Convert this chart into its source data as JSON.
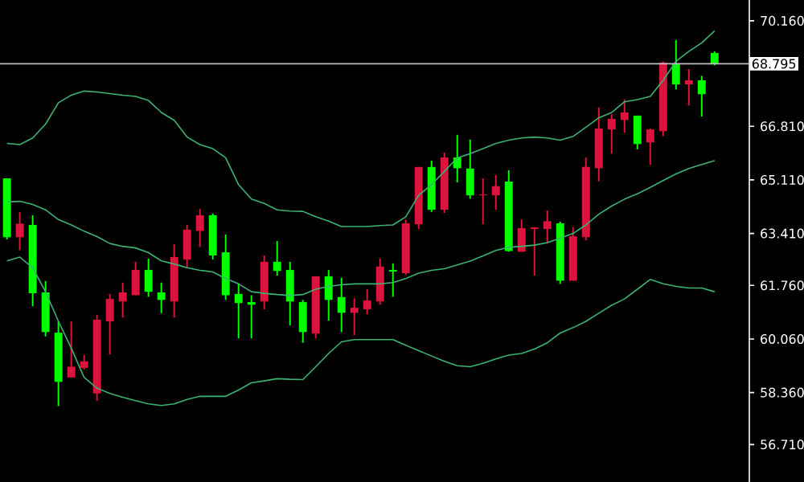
{
  "chart_data": {
    "type": "candlestick",
    "categories": [
      null,
      null,
      null,
      null,
      null,
      null,
      null,
      null,
      null,
      null,
      null,
      null,
      null,
      null,
      null,
      null,
      null,
      null,
      null,
      null,
      null,
      null,
      null,
      null,
      null,
      null,
      null,
      null,
      null,
      null,
      null,
      null,
      null,
      null,
      null,
      null,
      null,
      null,
      null,
      null,
      null,
      null,
      null,
      null,
      null,
      null,
      null,
      null,
      null,
      null,
      null,
      null,
      null,
      null,
      null,
      null
    ],
    "ohlc": [
      [
        65.16,
        65.16,
        63.22,
        63.29
      ],
      [
        63.29,
        64.09,
        62.88,
        63.72
      ],
      [
        63.68,
        63.99,
        61.1,
        61.51
      ],
      [
        61.54,
        61.9,
        60.14,
        60.28
      ],
      [
        60.26,
        60.62,
        57.93,
        58.7
      ],
      [
        58.84,
        60.62,
        58.84,
        59.18
      ],
      [
        59.14,
        59.55,
        59.09,
        59.35
      ],
      [
        58.33,
        60.82,
        58.1,
        60.67
      ],
      [
        60.62,
        61.49,
        59.57,
        61.33
      ],
      [
        61.25,
        61.85,
        60.74,
        61.54
      ],
      [
        61.45,
        62.51,
        61.45,
        62.25
      ],
      [
        62.25,
        62.61,
        61.4,
        61.56
      ],
      [
        61.54,
        61.85,
        60.88,
        61.3
      ],
      [
        61.25,
        63.07,
        60.74,
        62.66
      ],
      [
        62.58,
        63.68,
        62.32,
        63.53
      ],
      [
        63.49,
        64.19,
        62.98,
        63.99
      ],
      [
        63.99,
        64.04,
        62.58,
        62.71
      ],
      [
        62.81,
        63.38,
        61.3,
        61.45
      ],
      [
        61.49,
        61.81,
        60.08,
        61.2
      ],
      [
        61.23,
        61.45,
        60.08,
        61.15
      ],
      [
        61.25,
        62.71,
        61.0,
        62.51
      ],
      [
        62.51,
        63.17,
        62.07,
        62.22
      ],
      [
        62.25,
        62.51,
        60.49,
        61.25
      ],
      [
        61.23,
        61.3,
        59.94,
        60.28
      ],
      [
        60.23,
        62.05,
        60.08,
        62.05
      ],
      [
        62.05,
        62.25,
        60.64,
        61.3
      ],
      [
        61.39,
        62.0,
        60.28,
        60.89
      ],
      [
        60.89,
        61.35,
        60.18,
        61.05
      ],
      [
        61.0,
        61.64,
        60.84,
        61.28
      ],
      [
        61.25,
        62.61,
        61.15,
        62.36
      ],
      [
        62.25,
        62.46,
        61.4,
        62.2
      ],
      [
        62.15,
        63.85,
        62.1,
        63.73
      ],
      [
        63.7,
        65.52,
        63.55,
        65.52
      ],
      [
        65.52,
        65.72,
        64.09,
        64.16
      ],
      [
        64.16,
        65.98,
        64.06,
        65.82
      ],
      [
        65.82,
        66.54,
        65.03,
        65.48
      ],
      [
        65.47,
        66.39,
        64.51,
        64.62
      ],
      [
        64.62,
        65.16,
        63.7,
        64.65
      ],
      [
        64.62,
        65.26,
        64.16,
        64.91
      ],
      [
        65.06,
        65.42,
        62.83,
        62.85
      ],
      [
        62.83,
        63.85,
        62.83,
        63.58
      ],
      [
        63.55,
        63.61,
        62.07,
        63.6
      ],
      [
        63.55,
        64.14,
        63.09,
        63.8
      ],
      [
        63.73,
        63.78,
        61.81,
        61.91
      ],
      [
        61.91,
        63.61,
        61.91,
        63.32
      ],
      [
        63.29,
        65.82,
        63.19,
        65.52
      ],
      [
        65.48,
        67.41,
        65.06,
        66.74
      ],
      [
        66.71,
        67.2,
        65.94,
        67.05
      ],
      [
        67.01,
        67.66,
        66.61,
        67.25
      ],
      [
        67.15,
        67.15,
        66.08,
        66.25
      ],
      [
        66.3,
        66.74,
        65.59,
        66.71
      ],
      [
        66.66,
        68.87,
        66.5,
        68.83
      ],
      [
        68.8,
        69.55,
        67.98,
        68.14
      ],
      [
        68.14,
        68.63,
        67.47,
        68.27
      ],
      [
        68.27,
        68.41,
        67.12,
        67.83
      ],
      [
        69.14,
        69.19,
        68.75,
        68.78
      ]
    ],
    "colors": [
      "#00ff00",
      "#dc143c",
      "#00ff00",
      "#00ff00",
      "#00ff00",
      "#dc143c",
      "#dc143c",
      "#dc143c",
      "#dc143c",
      "#dc143c",
      "#dc143c",
      "#00ff00",
      "#00ff00",
      "#dc143c",
      "#dc143c",
      "#dc143c",
      "#00ff00",
      "#00ff00",
      "#00ff00",
      "#00ff00",
      "#dc143c",
      "#00ff00",
      "#00ff00",
      "#00ff00",
      "#dc143c",
      "#00ff00",
      "#00ff00",
      "#dc143c",
      "#dc143c",
      "#dc143c",
      "#00ff00",
      "#dc143c",
      "#dc143c",
      "#00ff00",
      "#dc143c",
      "#00ff00",
      "#00ff00",
      "#dc143c",
      "#dc143c",
      "#00ff00",
      "#dc143c",
      "#dc143c",
      "#dc143c",
      "#00ff00",
      "#dc143c",
      "#dc143c",
      "#dc143c",
      "#dc143c",
      "#dc143c",
      "#00ff00",
      "#dc143c",
      "#dc143c",
      "#00ff00",
      "#dc143c",
      "#00ff00",
      "#00ff00"
    ],
    "series": [
      {
        "type": "line",
        "color": "#3cb371",
        "values": [
          66.27,
          66.23,
          66.44,
          66.88,
          67.56,
          67.8,
          67.93,
          67.9,
          67.85,
          67.8,
          67.76,
          67.63,
          67.25,
          67.0,
          66.47,
          66.23,
          66.1,
          65.81,
          64.96,
          64.5,
          64.36,
          64.16,
          64.12,
          64.11,
          63.94,
          63.8,
          63.63,
          63.63,
          63.63,
          63.66,
          63.68,
          63.94,
          64.62,
          64.96,
          65.38,
          65.81,
          65.94,
          66.1,
          66.27,
          66.37,
          66.44,
          66.47,
          66.44,
          66.37,
          66.49,
          66.78,
          67.08,
          67.25,
          67.59,
          67.66,
          67.76,
          68.27,
          68.87,
          69.19,
          69.46,
          69.84
        ]
      },
      {
        "type": "line",
        "color": "#3cb371",
        "values": [
          64.41,
          64.43,
          64.33,
          64.16,
          63.85,
          63.68,
          63.48,
          63.31,
          63.09,
          63.0,
          62.95,
          62.8,
          62.54,
          62.44,
          62.32,
          62.24,
          62.19,
          61.98,
          61.81,
          61.56,
          61.51,
          61.47,
          61.44,
          61.47,
          61.64,
          61.73,
          61.78,
          61.81,
          61.81,
          61.81,
          61.85,
          61.98,
          62.15,
          62.24,
          62.29,
          62.41,
          62.53,
          62.7,
          62.87,
          62.97,
          63.0,
          63.04,
          63.12,
          63.26,
          63.41,
          63.68,
          64.02,
          64.28,
          64.5,
          64.67,
          64.87,
          65.09,
          65.3,
          65.47,
          65.6,
          65.72
        ]
      },
      {
        "type": "line",
        "color": "#3cb371",
        "values": [
          62.54,
          62.66,
          62.32,
          61.56,
          60.62,
          59.77,
          58.84,
          58.5,
          58.33,
          58.21,
          58.1,
          58.0,
          57.95,
          58.0,
          58.14,
          58.24,
          58.24,
          58.24,
          58.44,
          58.67,
          58.73,
          58.8,
          58.78,
          58.77,
          59.18,
          59.6,
          59.97,
          60.04,
          60.04,
          60.04,
          60.04,
          59.86,
          59.69,
          59.52,
          59.35,
          59.21,
          59.18,
          59.29,
          59.43,
          59.55,
          59.6,
          59.74,
          59.94,
          60.25,
          60.42,
          60.62,
          60.88,
          61.13,
          61.33,
          61.64,
          61.95,
          61.81,
          61.73,
          61.68,
          61.68,
          61.56
        ]
      }
    ],
    "ylim": [
      55.52,
      70.82
    ],
    "yticks": [
      {
        "value": 56.71,
        "label": "56.710"
      },
      {
        "value": 58.36,
        "label": "58.360"
      },
      {
        "value": 60.06,
        "label": "60.060"
      },
      {
        "value": 61.76,
        "label": "61.760"
      },
      {
        "value": 63.41,
        "label": "63.410"
      },
      {
        "value": 65.11,
        "label": "65.110"
      },
      {
        "value": 66.81,
        "label": "66.810"
      },
      {
        "value": 70.16,
        "label": "70.160"
      }
    ],
    "ref_lines": [
      {
        "axis": "y",
        "value": 68.795,
        "label": "68.795",
        "color": "#c0c0c0"
      }
    ],
    "tick_labels": "y"
  }
}
